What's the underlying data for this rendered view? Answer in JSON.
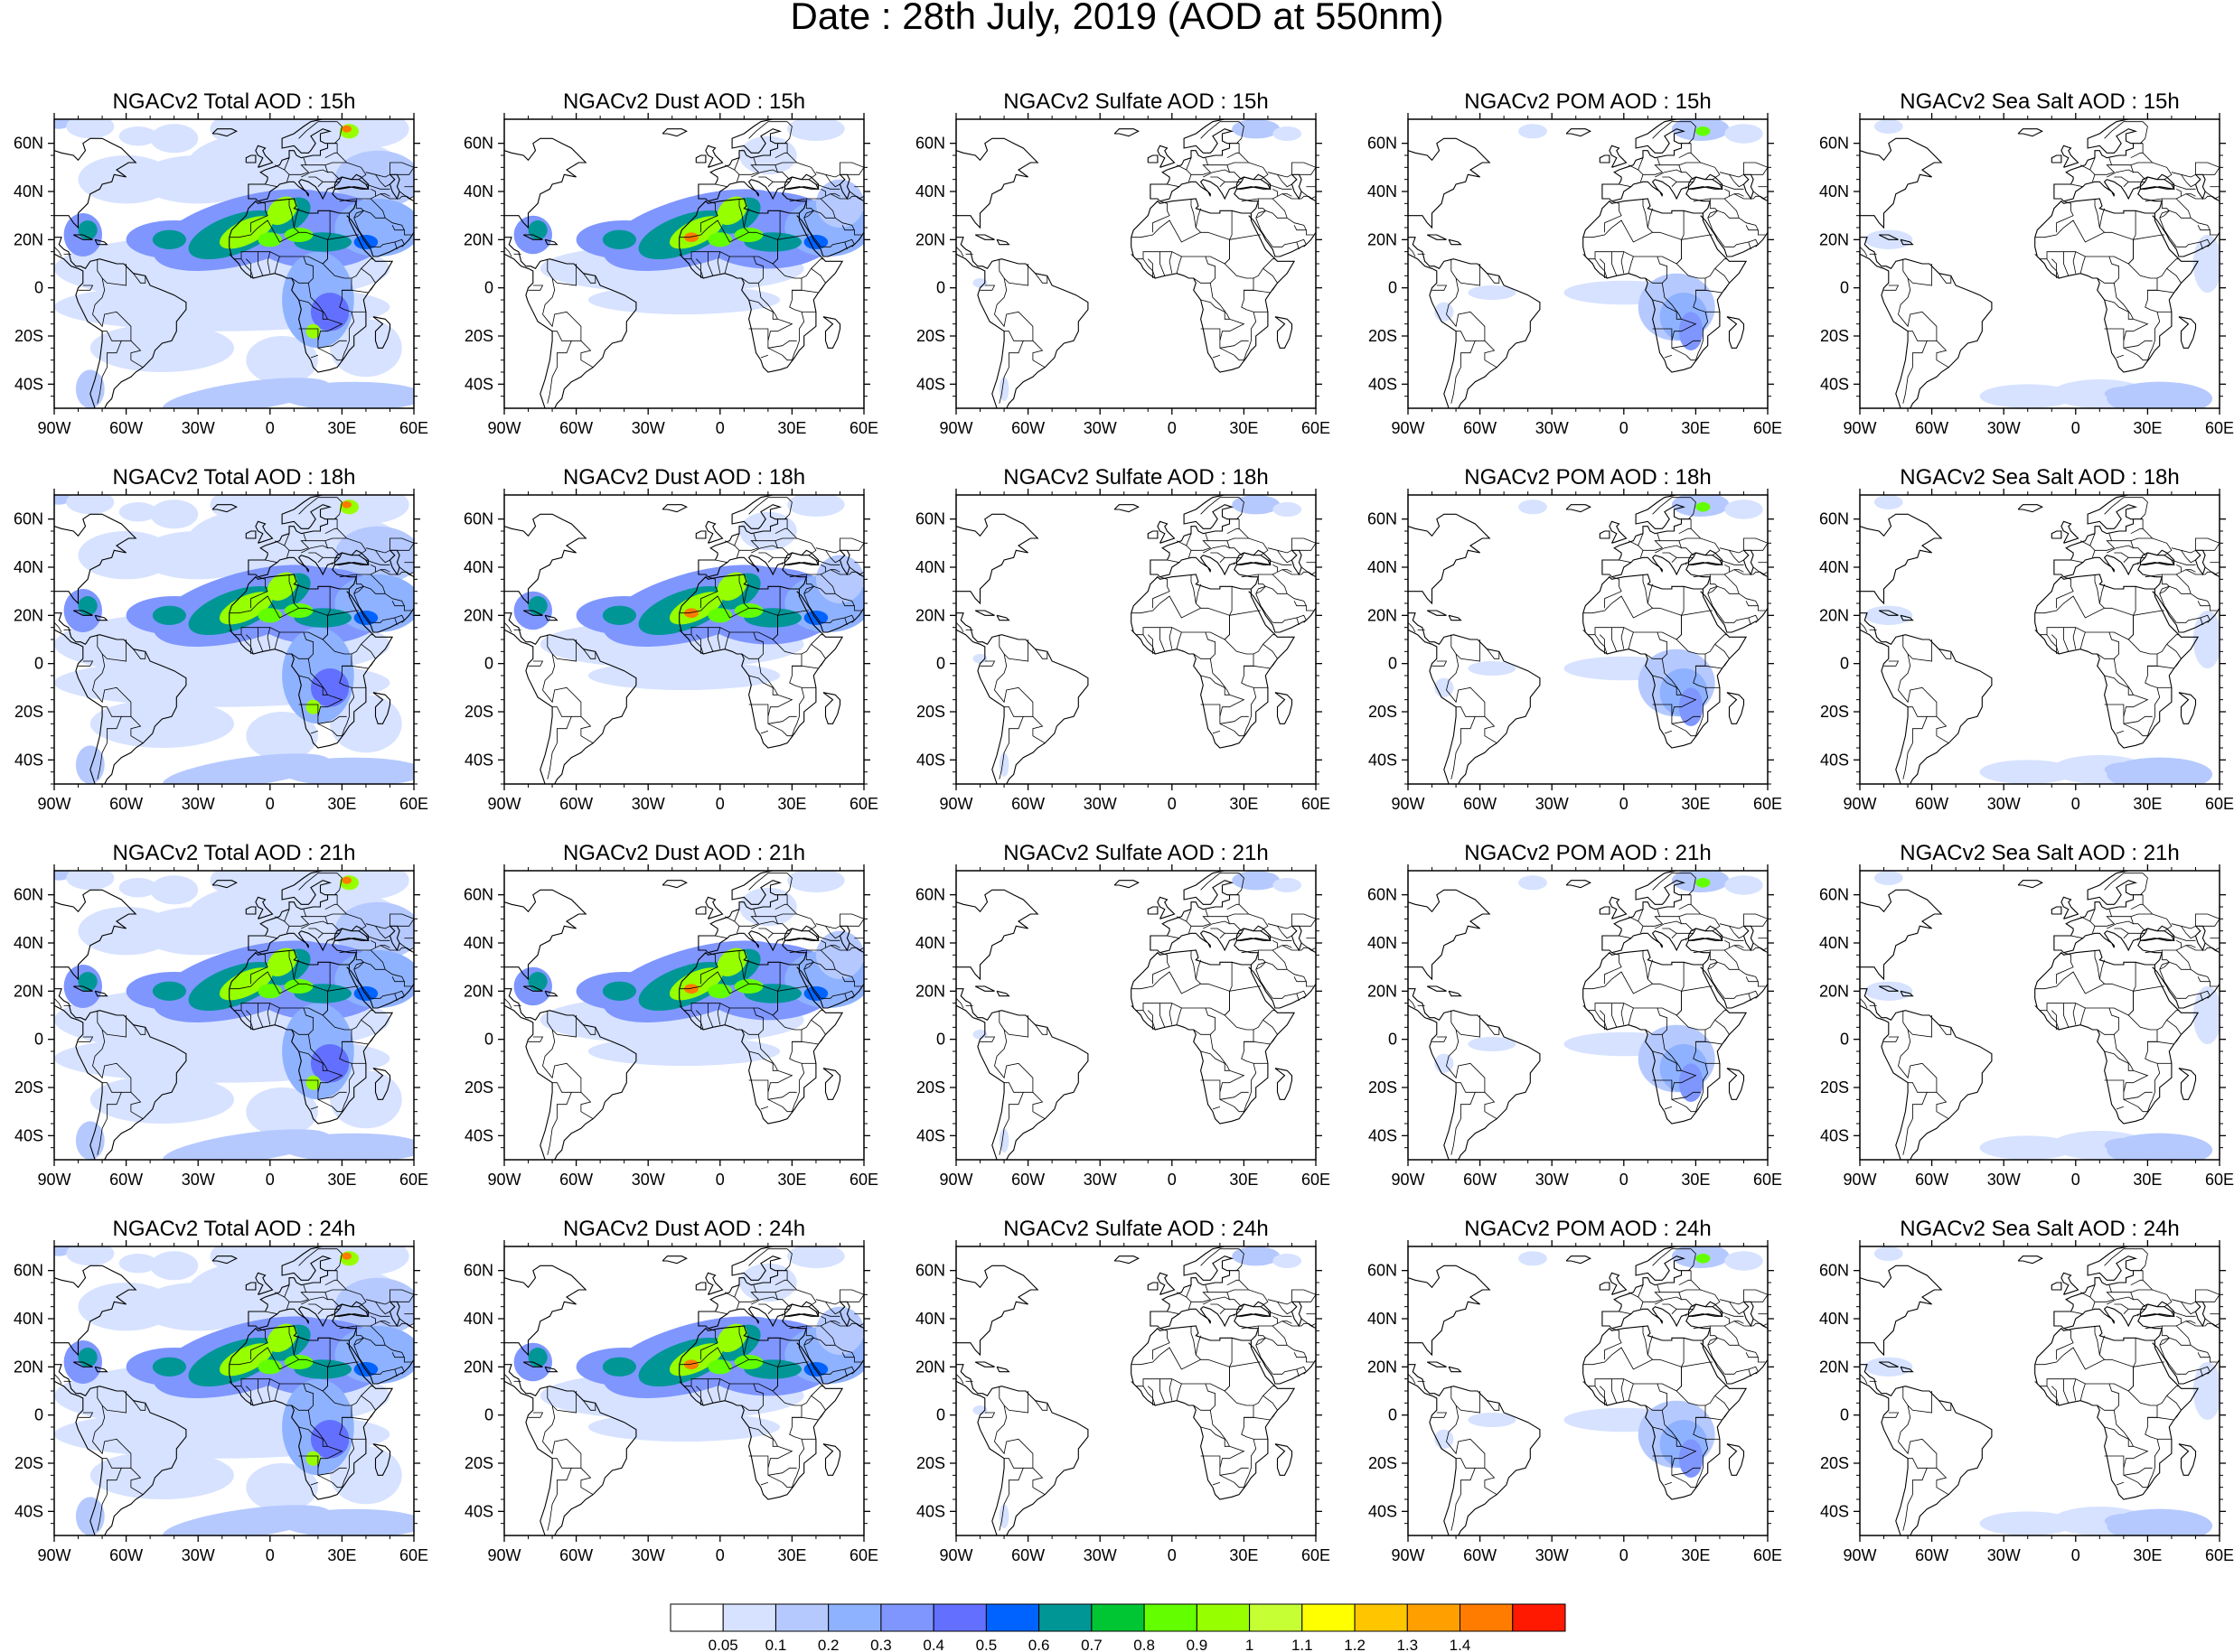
{
  "title": "Date : 28th July, 2019 (AOD at 550nm)",
  "map_extent": {
    "lon": [
      -90,
      60
    ],
    "lat": [
      -50,
      70
    ]
  },
  "lon_ticks": [
    "90W",
    "60W",
    "30W",
    "0",
    "30E",
    "60E"
  ],
  "lat_ticks": [
    "60N",
    "40N",
    "20N",
    "0",
    "20S",
    "40S"
  ],
  "panels": [
    {
      "title": "NGACv2 Total AOD : 15h",
      "species": "total"
    },
    {
      "title": "NGACv2 Dust AOD : 15h",
      "species": "dust"
    },
    {
      "title": "NGACv2 Sulfate AOD : 15h",
      "species": "sulfate"
    },
    {
      "title": "NGACv2 POM AOD : 15h",
      "species": "pom"
    },
    {
      "title": "NGACv2 Sea Salt AOD : 15h",
      "species": "seasalt"
    },
    {
      "title": "NGACv2 Total AOD : 18h",
      "species": "total"
    },
    {
      "title": "NGACv2 Dust AOD : 18h",
      "species": "dust"
    },
    {
      "title": "NGACv2 Sulfate AOD : 18h",
      "species": "sulfate"
    },
    {
      "title": "NGACv2 POM AOD : 18h",
      "species": "pom"
    },
    {
      "title": "NGACv2 Sea Salt AOD : 18h",
      "species": "seasalt"
    },
    {
      "title": "NGACv2 Total AOD : 21h",
      "species": "total"
    },
    {
      "title": "NGACv2 Dust AOD : 21h",
      "species": "dust"
    },
    {
      "title": "NGACv2 Sulfate AOD : 21h",
      "species": "sulfate"
    },
    {
      "title": "NGACv2 POM AOD : 21h",
      "species": "pom"
    },
    {
      "title": "NGACv2 Sea Salt AOD : 21h",
      "species": "seasalt"
    },
    {
      "title": "NGACv2 Total AOD : 24h",
      "species": "total"
    },
    {
      "title": "NGACv2 Dust AOD : 24h",
      "species": "dust"
    },
    {
      "title": "NGACv2 Sulfate AOD : 24h",
      "species": "sulfate"
    },
    {
      "title": "NGACv2 POM AOD : 24h",
      "species": "pom"
    },
    {
      "title": "NGACv2 Sea Salt  AOD : 24h",
      "species": "seasalt"
    }
  ],
  "colorbar": {
    "labels": [
      "0.05",
      "0.1",
      "0.2",
      "0.3",
      "0.4",
      "0.5",
      "0.6",
      "0.7",
      "0.8",
      "0.9",
      "1",
      "1.1",
      "1.2",
      "1.3",
      "1.4"
    ],
    "colors": [
      "#ffffff",
      "#d6e2ff",
      "#b5c9ff",
      "#8eb2ff",
      "#7f96ff",
      "#6370ff",
      "#0063ff",
      "#009696",
      "#00c633",
      "#63ff00",
      "#96ff00",
      "#c6ff33",
      "#ffff00",
      "#ffc600",
      "#ffa000",
      "#ff7c00",
      "#ff1900"
    ]
  },
  "land_color": "#ffffff",
  "outline_color": "#000000"
}
